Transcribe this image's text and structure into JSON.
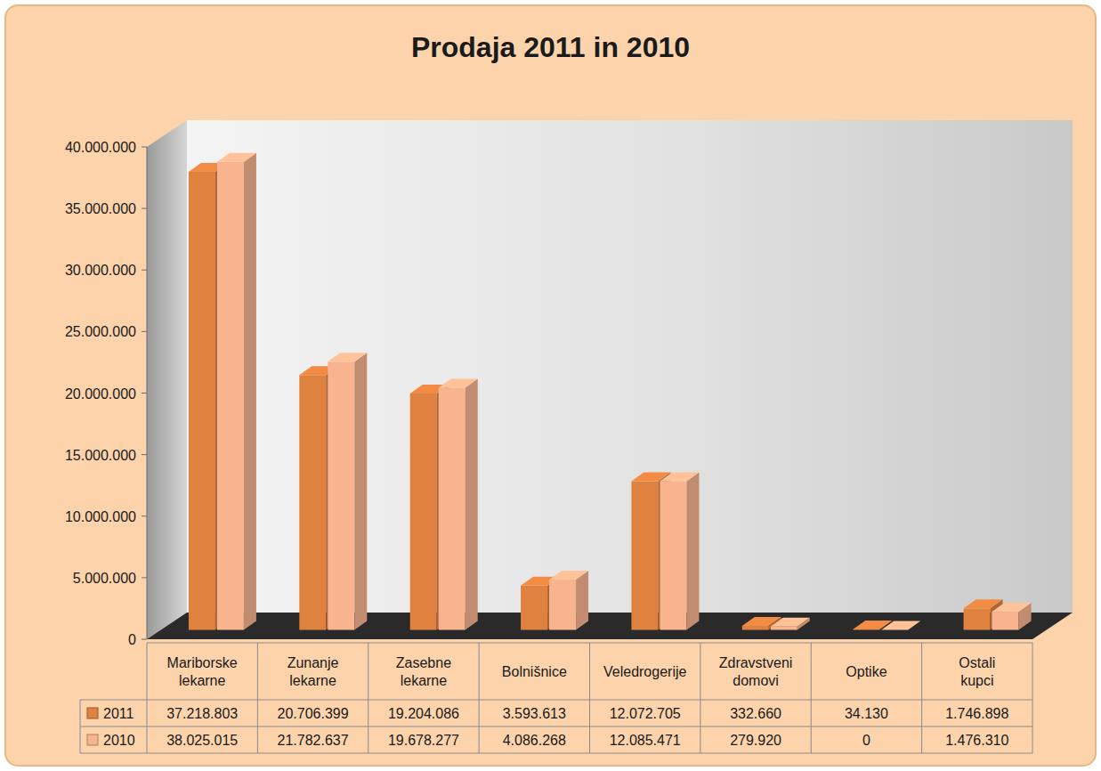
{
  "chart_data": {
    "type": "bar",
    "title": "Prodaja 2011 in 2010",
    "categories": [
      "Mariborske lekarne",
      "Zunanje lekarne",
      "Zasebne lekarne",
      "Bolnišnice",
      "Veledrogerije",
      "Zdravstveni domovi",
      "Optike",
      "Ostali kupci"
    ],
    "series": [
      {
        "name": "2011",
        "color": "#e0823f",
        "values": [
          37218803,
          20706399,
          19204086,
          3593613,
          12072705,
          332660,
          34130,
          1746898
        ],
        "value_labels": [
          "37.218.803",
          "20.706.399",
          "19.204.086",
          "3.593.613",
          "12.072.705",
          "332.660",
          "34.130",
          "1.746.898"
        ]
      },
      {
        "name": "2010",
        "color": "#f7b48e",
        "values": [
          38025015,
          21782637,
          19678277,
          4086268,
          12085471,
          279920,
          0,
          1476310
        ],
        "value_labels": [
          "38.025.015",
          "21.782.637",
          "19.678.277",
          "4.086.268",
          "12.085.471",
          "279.920",
          "0",
          "1.476.310"
        ]
      }
    ],
    "ylim": [
      0,
      40000000
    ],
    "yticks": [
      0,
      {
        "value": 5000000,
        "label": "5.000.000"
      },
      {
        "value": 10000000,
        "label": "10.000.000"
      },
      {
        "value": 15000000,
        "label": "15.000.000"
      },
      {
        "value": 20000000,
        "label": "20.000.000"
      },
      {
        "value": 25000000,
        "label": "25.000.000"
      },
      {
        "value": 30000000,
        "label": "30.000.000"
      },
      {
        "value": 35000000,
        "label": "35.000.000"
      },
      {
        "value": 40000000,
        "label": "40.000.000"
      }
    ],
    "grid": false,
    "legend": "bottom"
  }
}
